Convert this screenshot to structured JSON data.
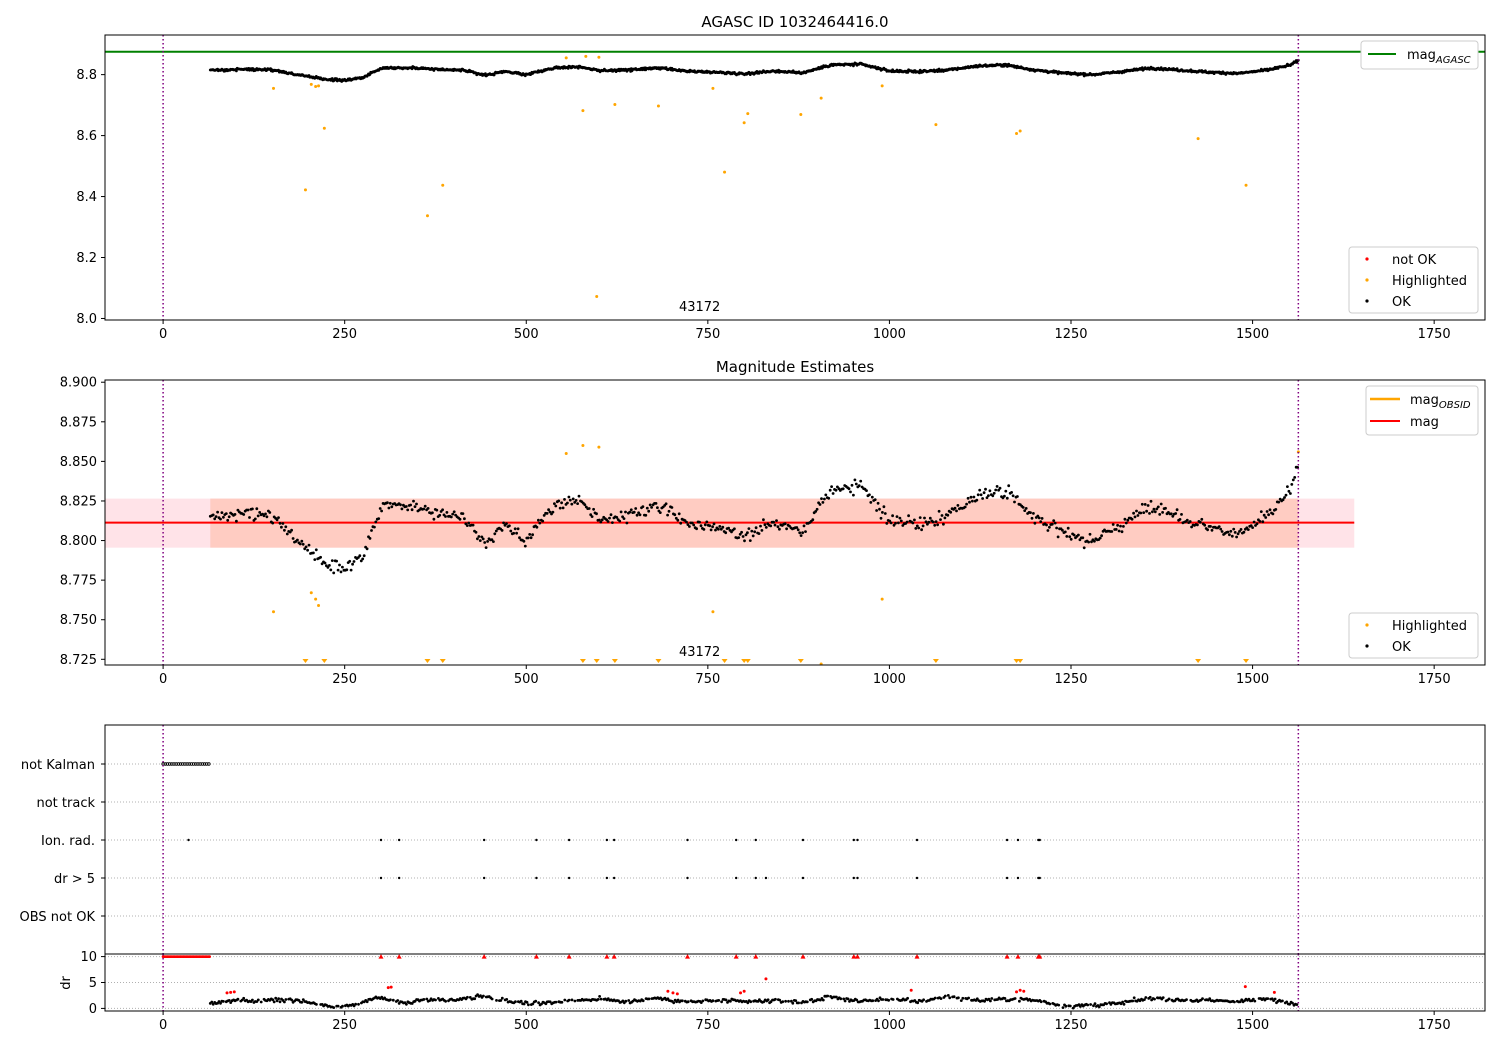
{
  "figure": {
    "background": "#ffffff"
  },
  "chart_data": [
    {
      "id": "top",
      "type": "scatter",
      "title": "AGASC ID 1032464416.0",
      "xlabel": "",
      "ylabel": "",
      "xlim": [
        -80,
        1820
      ],
      "ylim": [
        7.995,
        8.93
      ],
      "xticks": [
        0,
        250,
        500,
        750,
        1000,
        1250,
        1500,
        1750
      ],
      "yticks": [
        8.0,
        8.2,
        8.4,
        8.6,
        8.8
      ],
      "ytick_decimals": 1,
      "obsid_label": "43172",
      "obsid_label_x": 780,
      "obsid_bounds": [
        0,
        1563
      ],
      "hline": {
        "name": "mag",
        "subscript": "AGASC",
        "value": 8.875,
        "color": "#008000"
      },
      "line_legend": "top-right",
      "scatter_legend": "bottom-right",
      "scatter_legend_entries": [
        {
          "label": "not OK",
          "color": "#ff0000"
        },
        {
          "label": "Highlighted",
          "color": "#ffa500"
        },
        {
          "label": "OK",
          "color": "#000000"
        }
      ],
      "ok_trend": {
        "x_range": [
          65,
          1563
        ],
        "y": [
          [
            65,
            8.814
          ],
          [
            110,
            8.818
          ],
          [
            150,
            8.816
          ],
          [
            175,
            8.804
          ],
          [
            200,
            8.794
          ],
          [
            225,
            8.784
          ],
          [
            250,
            8.781
          ],
          [
            275,
            8.79
          ],
          [
            300,
            8.822
          ],
          [
            340,
            8.823
          ],
          [
            375,
            8.818
          ],
          [
            410,
            8.815
          ],
          [
            445,
            8.798
          ],
          [
            470,
            8.81
          ],
          [
            500,
            8.8
          ],
          [
            540,
            8.823
          ],
          [
            575,
            8.826
          ],
          [
            600,
            8.813
          ],
          [
            640,
            8.815
          ],
          [
            680,
            8.822
          ],
          [
            720,
            8.811
          ],
          [
            760,
            8.808
          ],
          [
            800,
            8.803
          ],
          [
            840,
            8.812
          ],
          [
            880,
            8.806
          ],
          [
            920,
            8.832
          ],
          [
            960,
            8.834
          ],
          [
            1000,
            8.812
          ],
          [
            1040,
            8.81
          ],
          [
            1080,
            8.815
          ],
          [
            1120,
            8.828
          ],
          [
            1160,
            8.832
          ],
          [
            1200,
            8.815
          ],
          [
            1240,
            8.805
          ],
          [
            1280,
            8.8
          ],
          [
            1320,
            8.81
          ],
          [
            1360,
            8.822
          ],
          [
            1400,
            8.815
          ],
          [
            1440,
            8.808
          ],
          [
            1480,
            8.804
          ],
          [
            1520,
            8.815
          ],
          [
            1550,
            8.83
          ],
          [
            1563,
            8.845
          ]
        ],
        "scatter": 0.006,
        "count": 1500
      },
      "highlighted": {
        "color": "#ffa500",
        "points": [
          [
            152,
            8.755
          ],
          [
            196,
            8.422
          ],
          [
            204,
            8.768
          ],
          [
            210,
            8.761
          ],
          [
            214,
            8.763
          ],
          [
            222,
            8.624
          ],
          [
            364,
            8.337
          ],
          [
            385,
            8.437
          ],
          [
            555,
            8.855
          ],
          [
            578,
            8.682
          ],
          [
            582,
            8.86
          ],
          [
            597,
            8.072
          ],
          [
            600,
            8.857
          ],
          [
            622,
            8.702
          ],
          [
            682,
            8.697
          ],
          [
            757,
            8.755
          ],
          [
            773,
            8.48
          ],
          [
            800,
            8.642
          ],
          [
            805,
            8.672
          ],
          [
            878,
            8.669
          ],
          [
            906,
            8.723
          ],
          [
            990,
            8.763
          ],
          [
            1064,
            8.636
          ],
          [
            1175,
            8.607
          ],
          [
            1180,
            8.615
          ],
          [
            1425,
            8.59
          ],
          [
            1491,
            8.437
          ]
        ]
      }
    },
    {
      "id": "middle",
      "type": "scatter",
      "title": "Magnitude Estimates",
      "xlabel": "",
      "ylabel": "",
      "xlim": [
        -80,
        1820
      ],
      "ylim": [
        8.7214,
        8.9014
      ],
      "xticks": [
        0,
        250,
        500,
        750,
        1000,
        1250,
        1500,
        1750
      ],
      "yticks": [
        8.725,
        8.75,
        8.775,
        8.8,
        8.825,
        8.85,
        8.875,
        8.9
      ],
      "ytick_decimals": 3,
      "obsid_label": "43172",
      "obsid_label_x": 780,
      "obsid_bounds": [
        0,
        1563
      ],
      "mag_line": {
        "name": "mag",
        "value": 8.8113,
        "color": "#ff0000"
      },
      "band": {
        "low": 8.7955,
        "high": 8.8265,
        "x_range": [
          -80,
          1640
        ],
        "color": "#ffc0cb"
      },
      "obsid_line": {
        "name": "mag",
        "subscript": "OBSID",
        "value": 8.8113,
        "color": "#ffa500"
      },
      "line_legend_entries": [
        {
          "label": "mag",
          "subscript": "OBSID",
          "color": "#ffa500"
        },
        {
          "label": "mag",
          "subscript": "",
          "color": "#ff0000"
        }
      ],
      "scatter_legend_entries": [
        {
          "label": "Highlighted",
          "color": "#ffa500"
        },
        {
          "label": "OK",
          "color": "#000000"
        }
      ],
      "out_of_range_markers_x": [
        196,
        222,
        364,
        385,
        578,
        597,
        622,
        682,
        773,
        800,
        805,
        878,
        1064,
        1175,
        1180,
        1425,
        1491
      ],
      "highlighted_points": [
        [
          152,
          8.755
        ],
        [
          204,
          8.767
        ],
        [
          210,
          8.763
        ],
        [
          214,
          8.759
        ],
        [
          555,
          8.855
        ],
        [
          578,
          8.86
        ],
        [
          600,
          8.859
        ],
        [
          757,
          8.755
        ],
        [
          906,
          8.722
        ],
        [
          990,
          8.763
        ],
        [
          1563,
          8.856
        ]
      ]
    },
    {
      "id": "flags",
      "type": "scatter",
      "xlabel": "",
      "ylabel": "",
      "xlim": [
        -80,
        1820
      ],
      "categories": [
        "not Kalman",
        "not track",
        "Ion. rad.",
        "dr > 5",
        "OBS not OK"
      ],
      "obsid_bounds": [
        0,
        1563
      ],
      "not_kalman_range": [
        0,
        65
      ],
      "ion_rad_x": [
        35,
        300,
        325,
        442,
        514,
        559,
        611,
        621,
        722,
        789,
        816,
        881,
        951,
        956,
        1038,
        1162,
        1177,
        1205,
        1207
      ],
      "dr5_x": [
        300,
        325,
        442,
        514,
        559,
        611,
        621,
        722,
        789,
        816,
        830,
        881,
        951,
        956,
        1038,
        1162,
        1177,
        1205,
        1207
      ]
    },
    {
      "id": "dr",
      "type": "scatter",
      "xlabel": "",
      "ylabel": "dr",
      "xlim": [
        -80,
        1820
      ],
      "ylim": [
        -0.5,
        10.5
      ],
      "yticks": [
        0,
        5,
        10
      ],
      "xticks": [
        0,
        250,
        500,
        750,
        1000,
        1250,
        1500,
        1750
      ],
      "obsid_bounds": [
        0,
        1563
      ],
      "red_top_x": [
        300,
        325,
        442,
        514,
        559,
        611,
        621,
        722,
        789,
        816,
        881,
        951,
        956,
        1038,
        1162,
        1177,
        1205,
        1207
      ],
      "red_top_range": [
        0,
        65
      ],
      "red_low_points": [
        [
          88,
          3.0
        ],
        [
          93,
          3.1
        ],
        [
          98,
          3.2
        ],
        [
          310,
          4.0
        ],
        [
          314,
          4.1
        ],
        [
          695,
          3.3
        ],
        [
          702,
          3.0
        ],
        [
          708,
          2.8
        ],
        [
          795,
          3.0
        ],
        [
          800,
          3.3
        ],
        [
          830,
          5.7
        ],
        [
          1030,
          3.5
        ],
        [
          1175,
          3.2
        ],
        [
          1180,
          3.5
        ],
        [
          1185,
          3.3
        ],
        [
          1490,
          4.2
        ],
        [
          1530,
          3.1
        ]
      ],
      "black_trend": [
        [
          65,
          1.0
        ],
        [
          100,
          1.6
        ],
        [
          130,
          1.4
        ],
        [
          175,
          1.8
        ],
        [
          200,
          1.2
        ],
        [
          230,
          0.4
        ],
        [
          260,
          0.6
        ],
        [
          300,
          2.2
        ],
        [
          330,
          1.0
        ],
        [
          370,
          1.8
        ],
        [
          400,
          1.6
        ],
        [
          440,
          2.4
        ],
        [
          480,
          1.3
        ],
        [
          520,
          1.0
        ],
        [
          560,
          1.5
        ],
        [
          600,
          1.8
        ],
        [
          640,
          1.3
        ],
        [
          680,
          2.0
        ],
        [
          720,
          1.2
        ],
        [
          760,
          1.5
        ],
        [
          800,
          1.3
        ],
        [
          840,
          1.5
        ],
        [
          880,
          1.2
        ],
        [
          920,
          2.2
        ],
        [
          960,
          1.4
        ],
        [
          1000,
          1.8
        ],
        [
          1040,
          1.3
        ],
        [
          1080,
          2.3
        ],
        [
          1120,
          1.5
        ],
        [
          1160,
          1.8
        ],
        [
          1200,
          1.6
        ],
        [
          1240,
          0.5
        ],
        [
          1280,
          0.6
        ],
        [
          1320,
          1.0
        ],
        [
          1360,
          2.0
        ],
        [
          1400,
          1.6
        ],
        [
          1440,
          1.5
        ],
        [
          1480,
          1.4
        ],
        [
          1520,
          1.8
        ],
        [
          1563,
          0.8
        ]
      ]
    }
  ]
}
